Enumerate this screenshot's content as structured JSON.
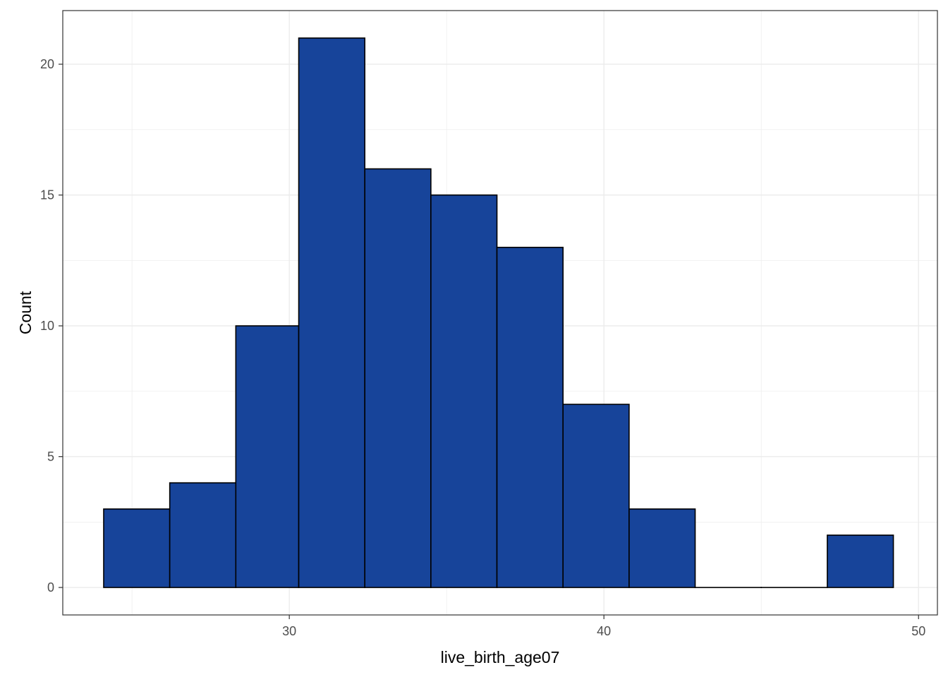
{
  "chart_data": {
    "type": "bar",
    "title": "",
    "xlabel": "live_birth_age07",
    "ylabel": "Count",
    "bins": [
      {
        "x0": 24.1,
        "x1": 26.2,
        "count": 3
      },
      {
        "x0": 26.2,
        "x1": 28.3,
        "count": 4
      },
      {
        "x0": 28.3,
        "x1": 30.3,
        "count": 10
      },
      {
        "x0": 30.3,
        "x1": 32.4,
        "count": 21
      },
      {
        "x0": 32.4,
        "x1": 34.5,
        "count": 16
      },
      {
        "x0": 34.5,
        "x1": 36.6,
        "count": 15
      },
      {
        "x0": 36.6,
        "x1": 38.7,
        "count": 13
      },
      {
        "x0": 38.7,
        "x1": 40.8,
        "count": 7
      },
      {
        "x0": 40.8,
        "x1": 42.9,
        "count": 3
      },
      {
        "x0": 42.9,
        "x1": 45.0,
        "count": 0
      },
      {
        "x0": 45.0,
        "x1": 47.1,
        "count": 0
      },
      {
        "x0": 47.1,
        "x1": 49.2,
        "count": 2
      }
    ],
    "xlim": [
      22.8,
      50.6
    ],
    "ylim": [
      -1.05,
      22.05
    ],
    "x_ticks": [
      30,
      40,
      50
    ],
    "y_ticks": [
      0,
      5,
      10,
      15,
      20
    ],
    "grid": true,
    "bar_fill": "#17449a",
    "bar_stroke": "#000000",
    "grid_color": "#ebebeb",
    "tick_color": "#4d4d4d"
  }
}
